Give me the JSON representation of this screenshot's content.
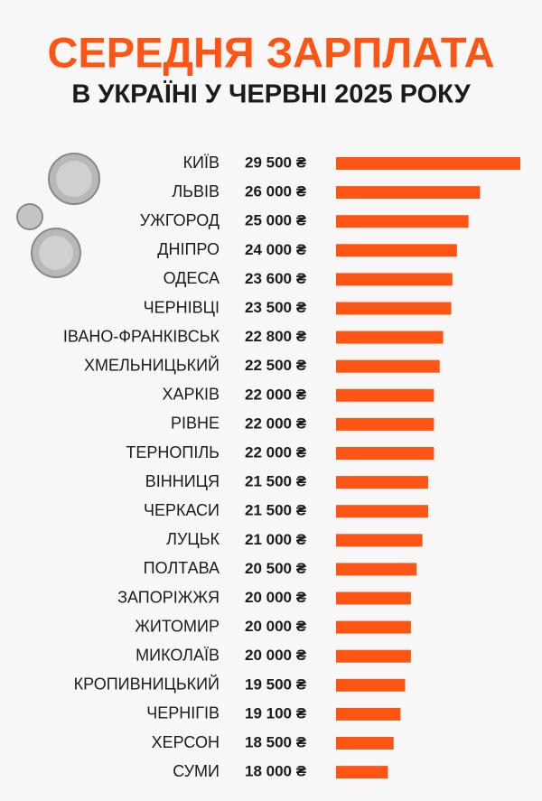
{
  "chart_data": {
    "type": "bar",
    "orientation": "horizontal",
    "title": "СЕРЕДНЯ ЗАРПЛАТА",
    "subtitle": "В УКРАЇНІ У ЧЕРВНІ 2025 РОКУ",
    "categories": [
      "КИЇВ",
      "ЛЬВІВ",
      "УЖГОРОД",
      "ДНІПРО",
      "ОДЕСА",
      "ЧЕРНІВЦІ",
      "ІВАНО-ФРАНКІВСЬК",
      "ХМЕЛЬНИЦЬКИЙ",
      "ХАРКІВ",
      "РІВНЕ",
      "ТЕРНОПІЛЬ",
      "ВІННИЦЯ",
      "ЧЕРКАСИ",
      "ЛУЦЬК",
      "ПОЛТАВА",
      "ЗАПОРІЖЖЯ",
      "ЖИТОМИР",
      "МИКОЛАЇВ",
      "КРОПИВНИЦЬКИЙ",
      "ЧЕРНІГІВ",
      "ХЕРСОН",
      "СУМИ"
    ],
    "values": [
      29500,
      26000,
      25000,
      24000,
      23600,
      23500,
      22800,
      22500,
      22000,
      22000,
      22000,
      21500,
      21500,
      21000,
      20500,
      20000,
      20000,
      20000,
      19500,
      19100,
      18500,
      18000
    ],
    "value_labels": [
      "29 500 ₴",
      "26 000 ₴",
      "25 000 ₴",
      "24 000 ₴",
      "23 600 ₴",
      "23 500 ₴",
      "22 800 ₴",
      "22 500 ₴",
      "22 000 ₴",
      "22 000 ₴",
      "22 000 ₴",
      "21 500 ₴",
      "21 500 ₴",
      "21 000 ₴",
      "20 500 ₴",
      "20 000 ₴",
      "20 000 ₴",
      "20 000 ₴",
      "19 500 ₴",
      "19 100 ₴",
      "18 500 ₴",
      "18 000 ₴"
    ],
    "color": "#ff5514",
    "xlim": [
      13500,
      29500
    ]
  }
}
